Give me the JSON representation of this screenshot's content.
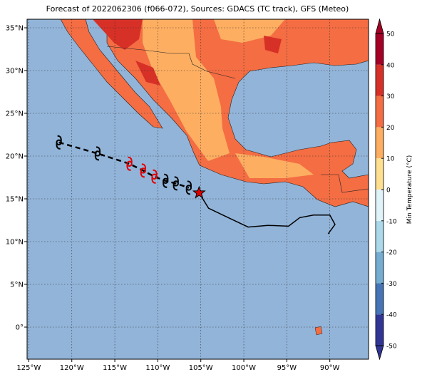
{
  "title": "Forecast of 2022062306 (f066-072), Sources: GDACS (TC track), GFS (Meteo)",
  "map": {
    "lonlim": [
      -125.2,
      -85.5
    ],
    "latlim": [
      -3.75,
      36
    ],
    "lon_ticks": [
      {
        "value": -125,
        "label": "125°W"
      },
      {
        "value": -120,
        "label": "120°W"
      },
      {
        "value": -115,
        "label": "115°W"
      },
      {
        "value": -110,
        "label": "110°W"
      },
      {
        "value": -105,
        "label": "105°W"
      },
      {
        "value": -100,
        "label": "100°W"
      },
      {
        "value": -95,
        "label": "95°W"
      },
      {
        "value": -90,
        "label": "90°W"
      }
    ],
    "lat_ticks": [
      {
        "value": 35,
        "label": "35°N"
      },
      {
        "value": 30,
        "label": "30°N"
      },
      {
        "value": 25,
        "label": "25°N"
      },
      {
        "value": 20,
        "label": "20°N"
      },
      {
        "value": 15,
        "label": "15°N"
      },
      {
        "value": 10,
        "label": "10°N"
      },
      {
        "value": 5,
        "label": "5°N"
      },
      {
        "value": 0,
        "label": "0°"
      }
    ]
  },
  "colorbar": {
    "label": "Min Temperature (°C)",
    "lim": [
      -50,
      50
    ],
    "ticks": [
      50,
      40,
      30,
      20,
      10,
      0,
      -10,
      -20,
      -30,
      -40,
      -50
    ],
    "colors": [
      "#313695",
      "#4575b4",
      "#74add1",
      "#abd9e9",
      "#e0f3f8",
      "#fee090",
      "#fdae61",
      "#f46d43",
      "#d73027",
      "#a50026"
    ]
  },
  "track": {
    "lon": [
      -121.5,
      -117.0,
      -113.3,
      -111.7,
      -110.4,
      -109.1,
      -107.9,
      -106.4
    ],
    "lat": [
      21.6,
      20.3,
      19.1,
      18.3,
      17.6,
      17.1,
      16.8,
      16.3
    ],
    "colors": [
      "#000000",
      "#000000",
      "#e00000",
      "#e00000",
      "#e00000",
      "#000000",
      "#000000",
      "#000000"
    ]
  },
  "current": {
    "lon": -105.2,
    "lat": 15.7
  },
  "past_track": {
    "lon": [
      -105.2,
      -104.1,
      -101.8,
      -99.5,
      -97.2,
      -94.8,
      -93.5,
      -91.9,
      -90.0,
      -89.4,
      -90.2
    ],
    "lat": [
      15.7,
      13.9,
      12.8,
      11.7,
      11.9,
      11.8,
      12.8,
      13.1,
      13.1,
      12.0,
      10.9
    ]
  }
}
